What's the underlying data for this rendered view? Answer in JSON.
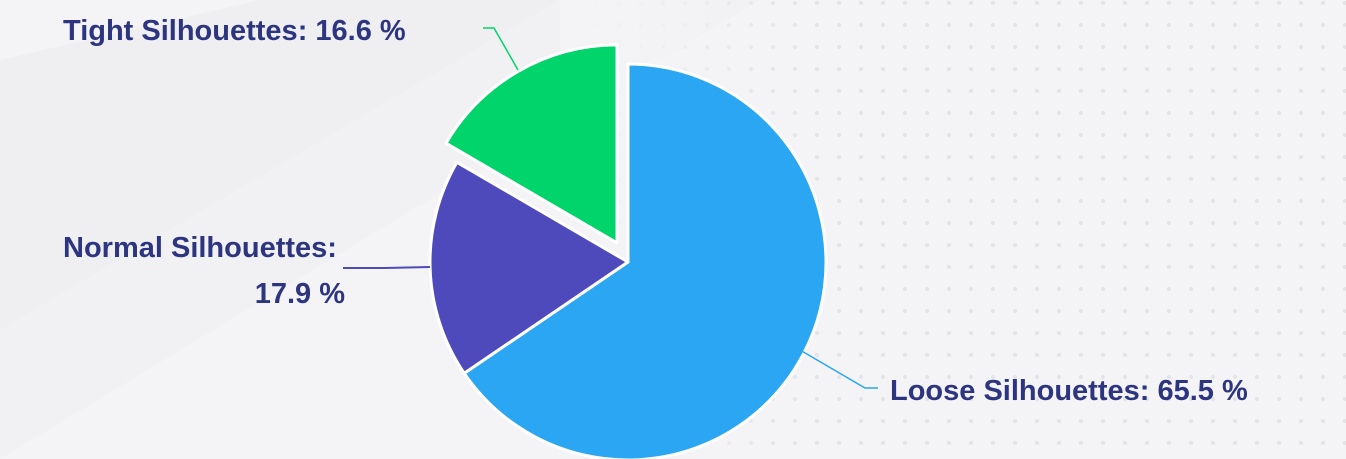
{
  "chart_data": {
    "type": "pie",
    "slices": [
      {
        "label": "Loose Silhouettes",
        "value": 65.5,
        "display": "Loose Silhouettes: 65.5 %",
        "color": "#2aa6f2"
      },
      {
        "label": "Normal Silhouettes",
        "value": 17.9,
        "display_lines": [
          "Normal Silhouettes:",
          "17.9 %"
        ],
        "color": "#4f4abb"
      },
      {
        "label": "Tight Silhouettes",
        "value": 16.6,
        "display": "Tight Silhouettes: 16.6 %",
        "color": "#00d46a",
        "exploded": true
      }
    ],
    "start_angle_deg": 0,
    "direction": "clockwise",
    "legend": "none"
  }
}
